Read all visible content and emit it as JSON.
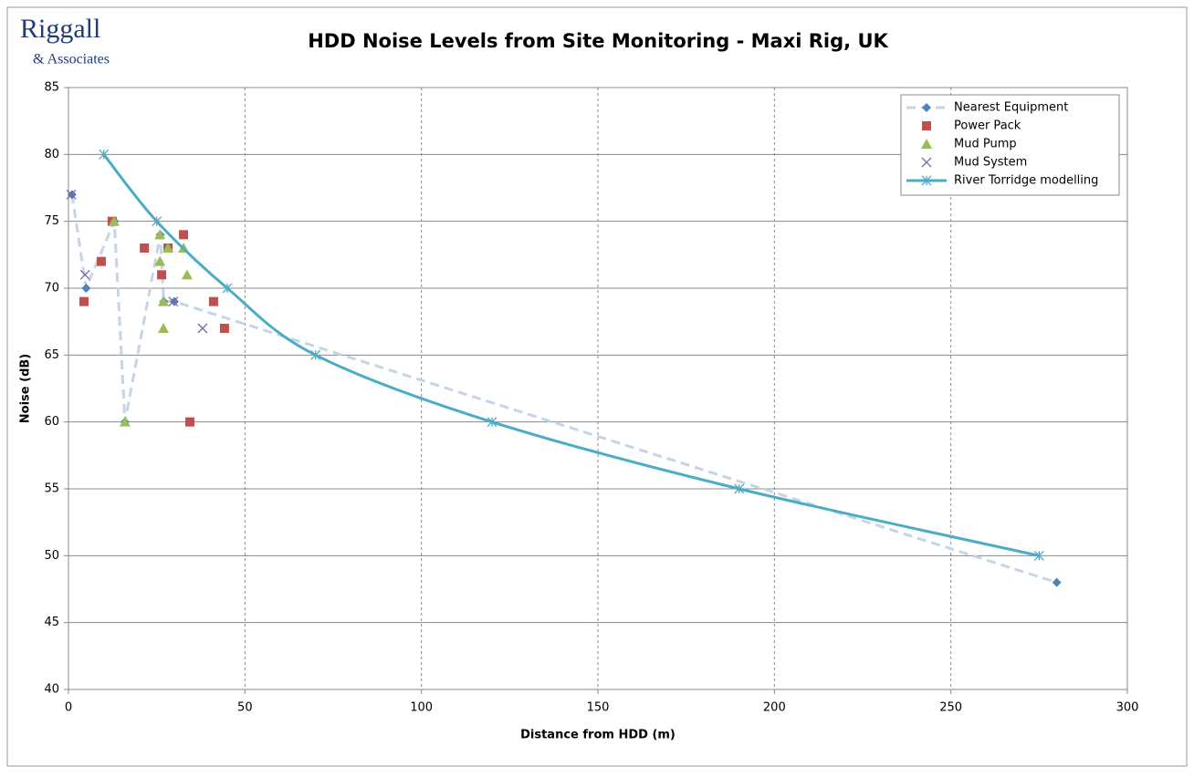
{
  "chart_data": {
    "type": "scatter",
    "logo": {
      "name": "Riggall",
      "tagline": "& Associates"
    },
    "title": "HDD Noise Levels from Site Monitoring - Maxi Rig, UK",
    "x_label": "Distance from HDD (m)",
    "y_label": "Noise (dB)",
    "xlim": [
      0,
      300
    ],
    "xticks": [
      0,
      50,
      100,
      150,
      200,
      250,
      300
    ],
    "ylim": [
      40,
      85
    ],
    "yticks": [
      40,
      45,
      50,
      55,
      60,
      65,
      70,
      75,
      80,
      85
    ],
    "grid": true,
    "legend": "top-right",
    "series": [
      {
        "name": "Nearest Equipment",
        "color": "#4f81bd",
        "line_color": "#c6d5e6",
        "marker": "diamond",
        "line": "dashed",
        "x": [
          1,
          5,
          13,
          16,
          26,
          27,
          30,
          280
        ],
        "values": [
          77,
          70,
          75,
          60,
          74,
          69,
          69,
          48
        ]
      },
      {
        "name": "Power Pack",
        "color": "#c0504d",
        "marker": "square",
        "line": "none",
        "x": [
          4.4,
          9.3,
          12.4,
          21.5,
          26.4,
          28.2,
          32.6,
          34.4,
          41.1,
          44.2
        ],
        "values": [
          69,
          72,
          75,
          73,
          71,
          73,
          74,
          60,
          69,
          67
        ]
      },
      {
        "name": "Mud Pump",
        "color": "#9bbb59",
        "marker": "triangle",
        "line": "none",
        "x": [
          12.9,
          16,
          25.9,
          25.9,
          26.9,
          26.9,
          28.2,
          32.6,
          33.6
        ],
        "values": [
          75,
          60,
          74,
          72,
          69,
          67,
          73,
          73,
          71
        ]
      },
      {
        "name": "Mud System",
        "color": "#8064a2",
        "marker": "x",
        "line": "none",
        "x": [
          0.8,
          4.7,
          29.7,
          38
        ],
        "values": [
          77,
          71,
          69,
          67
        ]
      },
      {
        "name": "River Torridge modelling",
        "color": "#4bacc6",
        "marker": "star",
        "line": "smooth",
        "x": [
          10,
          25,
          45,
          70,
          120,
          190,
          275
        ],
        "values": [
          80,
          75,
          70,
          65,
          60,
          55,
          50
        ]
      }
    ]
  }
}
